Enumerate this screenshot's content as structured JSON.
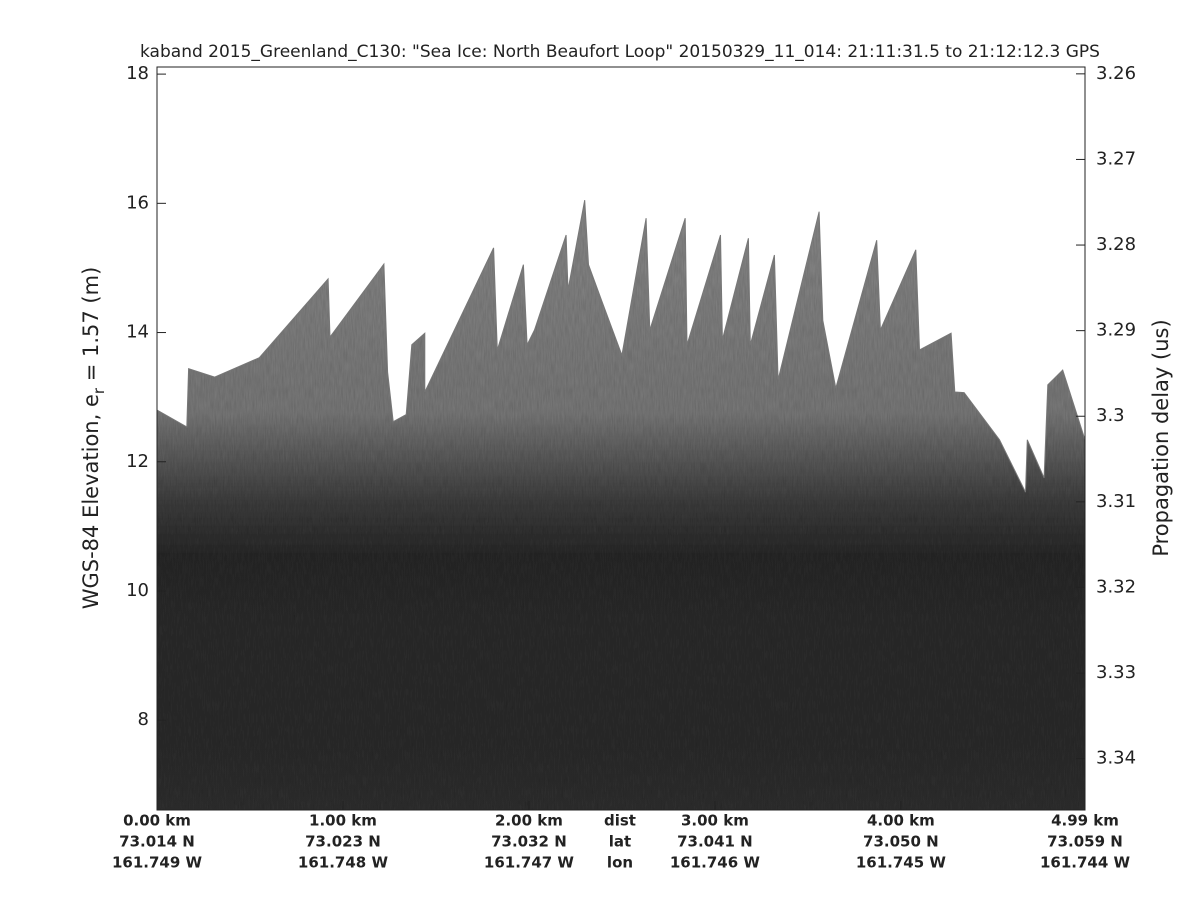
{
  "chart_data": {
    "type": "echogram",
    "title": "kaband 2015_Greenland_C130: \"Sea Ice: North Beaufort Loop\"  20150329_11_014: 21:11:31.5 to 21:12:12.3 GPS",
    "ylabel": {
      "prefix": "WGS-84 Elevation, e",
      "subscript": "r",
      "suffix": " = 1.57 (m)"
    },
    "y2label": "Propagation delay (us)",
    "xlim": [
      0,
      4.99
    ],
    "xticks": [
      {
        "value": 0,
        "label": "0.00 km"
      },
      {
        "value": 1,
        "label": "1.00 km"
      },
      {
        "value": 2,
        "label": "2.00 km"
      },
      {
        "value": 3,
        "label": "3.00 km"
      },
      {
        "value": 4,
        "label": "4.00 km"
      },
      {
        "value": 4.99,
        "label": "4.99 km"
      }
    ],
    "xtick_lat": [
      "73.014 N",
      "73.023 N",
      "73.032 N",
      "73.041 N",
      "73.050 N",
      "73.059 N"
    ],
    "xtick_lon": [
      "161.749 W",
      "161.748 W",
      "161.747 W",
      "161.746 W",
      "161.745 W",
      "161.744 W"
    ],
    "xrow_labels": [
      "dist",
      "lat",
      "lon"
    ],
    "ylim": [
      6.61,
      18.11
    ],
    "yticks": [
      8,
      10,
      12,
      14,
      16,
      18
    ],
    "y2lim": [
      3.2592,
      3.346
    ],
    "y2_reverse": true,
    "y2ticks": [
      3.26,
      3.27,
      3.28,
      3.29,
      3.3,
      3.31,
      3.32,
      3.33,
      3.34
    ],
    "surface_x": [
      0.0,
      0.16,
      0.17,
      0.31,
      0.55,
      0.92,
      0.93,
      1.22,
      1.24,
      1.27,
      1.34,
      1.37,
      1.44,
      1.44,
      1.81,
      1.83,
      1.97,
      1.99,
      2.03,
      2.2,
      2.21,
      2.3,
      2.32,
      2.39,
      2.5,
      2.63,
      2.65,
      2.84,
      2.85,
      3.03,
      3.04,
      3.18,
      3.19,
      3.32,
      3.34,
      3.56,
      3.58,
      3.65,
      3.87,
      3.89,
      4.08,
      4.1,
      4.27,
      4.29,
      4.34,
      4.53,
      4.67,
      4.68,
      4.77,
      4.79,
      4.87,
      4.99
    ],
    "surface_elevation": [
      12.8,
      12.54,
      13.44,
      13.31,
      13.61,
      14.83,
      13.93,
      15.06,
      13.39,
      12.62,
      12.73,
      13.81,
      13.99,
      13.08,
      15.31,
      13.73,
      15.05,
      13.81,
      14.04,
      15.51,
      14.66,
      16.05,
      15.05,
      14.5,
      13.65,
      15.77,
      14.04,
      15.77,
      13.81,
      15.51,
      13.89,
      15.46,
      13.81,
      15.2,
      13.27,
      15.87,
      14.19,
      13.14,
      15.43,
      14.04,
      15.28,
      13.73,
      13.99,
      13.08,
      13.07,
      12.34,
      11.53,
      12.34,
      11.75,
      13.19,
      13.42,
      12.34
    ]
  }
}
